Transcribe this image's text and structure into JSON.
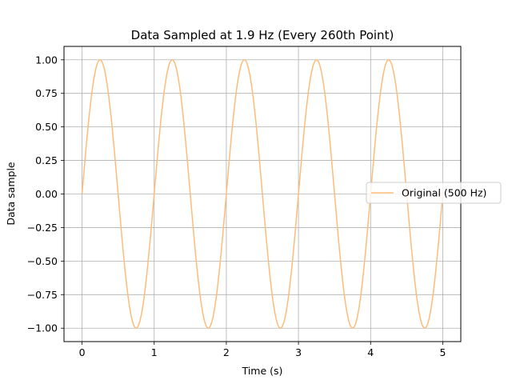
{
  "chart_data": {
    "type": "line",
    "title": "Data Sampled at 1.9 Hz (Every 260th Point)",
    "xlabel": "Time (s)",
    "ylabel": "Data sample",
    "xlim": [
      -0.25,
      5.25
    ],
    "ylim": [
      -1.1,
      1.1
    ],
    "xticks": [
      0,
      1,
      2,
      3,
      4,
      5
    ],
    "xtick_labels": [
      "0",
      "1",
      "2",
      "3",
      "4",
      "5"
    ],
    "yticks": [
      -1.0,
      -0.75,
      -0.5,
      -0.25,
      0.0,
      0.25,
      0.5,
      0.75,
      1.0
    ],
    "ytick_labels": [
      "−1.00",
      "−0.75",
      "−0.50",
      "−0.25",
      "0.00",
      "0.25",
      "0.50",
      "0.75",
      "1.00"
    ],
    "grid": true,
    "legend": "center-right",
    "series": [
      {
        "name": "Original (500 Hz)",
        "color": "#ffbb78",
        "x": [
          0.0,
          0.05,
          0.1,
          0.15,
          0.2,
          0.25,
          0.3,
          0.35,
          0.4,
          0.45,
          0.5,
          0.55,
          0.6,
          0.65,
          0.7,
          0.75,
          0.8,
          0.85,
          0.9,
          0.95,
          1.0,
          1.05,
          1.1,
          1.15,
          1.2,
          1.25,
          1.3,
          1.35,
          1.4,
          1.45,
          1.5,
          1.55,
          1.6,
          1.65,
          1.7,
          1.75,
          1.8,
          1.85,
          1.9,
          1.95,
          2.0,
          2.05,
          2.1,
          2.15,
          2.2,
          2.25,
          2.3,
          2.35,
          2.4,
          2.45,
          2.5,
          2.55,
          2.6,
          2.65,
          2.7,
          2.75,
          2.8,
          2.85,
          2.9,
          2.95,
          3.0,
          3.05,
          3.1,
          3.15,
          3.2,
          3.25,
          3.3,
          3.35,
          3.4,
          3.45,
          3.5,
          3.55,
          3.6,
          3.65,
          3.7,
          3.75,
          3.8,
          3.85,
          3.9,
          3.95,
          4.0,
          4.05,
          4.1,
          4.15,
          4.2,
          4.25,
          4.3,
          4.35,
          4.4,
          4.45,
          4.5,
          4.55,
          4.6,
          4.65,
          4.7,
          4.75,
          4.8,
          4.85,
          4.9,
          4.95,
          5.0
        ],
        "y": [
          0.0,
          0.309,
          0.588,
          0.809,
          0.951,
          1.0,
          0.951,
          0.809,
          0.588,
          0.309,
          0.0,
          -0.309,
          -0.588,
          -0.809,
          -0.951,
          -1.0,
          -0.951,
          -0.809,
          -0.588,
          -0.309,
          0.0,
          0.309,
          0.588,
          0.809,
          0.951,
          1.0,
          0.951,
          0.809,
          0.588,
          0.309,
          0.0,
          -0.309,
          -0.588,
          -0.809,
          -0.951,
          -1.0,
          -0.951,
          -0.809,
          -0.588,
          -0.309,
          0.0,
          0.309,
          0.588,
          0.809,
          0.951,
          1.0,
          0.951,
          0.809,
          0.588,
          0.309,
          0.0,
          -0.309,
          -0.588,
          -0.809,
          -0.951,
          -1.0,
          -0.951,
          -0.809,
          -0.588,
          -0.309,
          0.0,
          0.309,
          0.588,
          0.809,
          0.951,
          1.0,
          0.951,
          0.809,
          0.588,
          0.309,
          0.0,
          -0.309,
          -0.588,
          -0.809,
          -0.951,
          -1.0,
          -0.951,
          -0.809,
          -0.588,
          -0.309,
          0.0,
          0.309,
          0.588,
          0.809,
          0.951,
          1.0,
          0.951,
          0.809,
          0.588,
          0.309,
          0.0,
          -0.309,
          -0.588,
          -0.809,
          -0.951,
          -1.0,
          -0.951,
          -0.809,
          -0.588,
          -0.309,
          0.0
        ]
      }
    ]
  }
}
